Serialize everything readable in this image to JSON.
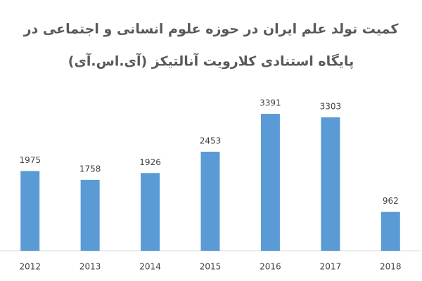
{
  "chart_data": {
    "type": "bar",
    "title": [
      "کمیت تولد علم ایران در حوزه علوم انسانی و اجتماعی در",
      "پایگاه استنادی کلارویت آنالتیکز (آی.اس.آی)"
    ],
    "categories": [
      "2012",
      "2013",
      "2014",
      "2015",
      "2016",
      "2017",
      "2018"
    ],
    "values": [
      1975,
      1758,
      1926,
      2453,
      3391,
      3303,
      962
    ],
    "color": "#5b9bd5",
    "ylim": [
      0,
      3600
    ]
  }
}
